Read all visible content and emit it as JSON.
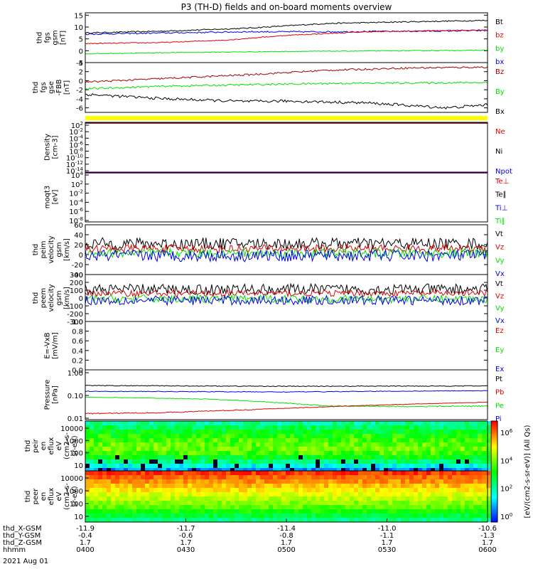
{
  "title": "P3 (TH-D) fields and on-board moments overview",
  "date_label": "2021 Aug 01",
  "colors": {
    "black": "#000000",
    "red": "#e00000",
    "green": "#00e000",
    "blue": "#0000e0",
    "darkred": "#a00000",
    "yellow": "#ffff00"
  },
  "chart_data": [
    {
      "type": "line",
      "id": "fgs",
      "ylabel": [
        "thd",
        "fgs",
        "gsm",
        "[nT]"
      ],
      "yticks": [
        -5,
        0,
        5,
        10,
        15
      ],
      "ylim": [
        -5,
        16
      ],
      "legend": [
        {
          "name": "Bt",
          "color": "black"
        },
        {
          "name": "bz",
          "color": "red"
        },
        {
          "name": "by",
          "color": "green"
        },
        {
          "name": "bx",
          "color": "blue"
        }
      ],
      "series": [
        {
          "name": "Bt",
          "color": "black",
          "x": [
            0,
            0.2,
            0.4,
            0.5,
            0.6,
            0.8,
            1
          ],
          "y": [
            7.5,
            8.3,
            9.5,
            10.5,
            11.5,
            12.2,
            12.8
          ],
          "noise": 0.25
        },
        {
          "name": "bx",
          "color": "blue",
          "x": [
            0,
            0.2,
            0.4,
            0.6,
            0.8,
            1
          ],
          "y": [
            7,
            7.5,
            8,
            8,
            8.2,
            8.5
          ],
          "noise": 0.3
        },
        {
          "name": "bz",
          "color": "red",
          "x": [
            0,
            0.2,
            0.35,
            0.5,
            0.7,
            1
          ],
          "y": [
            3,
            3.5,
            4.5,
            6.5,
            8,
            8.8
          ],
          "noise": 0.2
        },
        {
          "name": "by",
          "color": "green",
          "x": [
            0,
            0.2,
            0.5,
            1
          ],
          "y": [
            -1.3,
            -0.8,
            -0.3,
            0.2
          ],
          "noise": 0.15
        }
      ]
    },
    {
      "type": "line",
      "id": "fgs_gse",
      "ylabel": [
        "thd",
        "fgs",
        "gse",
        "-FBB",
        "[nT]"
      ],
      "yticks": [
        -6,
        -4,
        -2,
        0,
        2,
        4
      ],
      "ylim": [
        -7,
        4
      ],
      "legend": [
        {
          "name": "Bz",
          "color": "darkred"
        },
        {
          "name": "By",
          "color": "green"
        },
        {
          "name": "Bx",
          "color": "black"
        }
      ],
      "series": [
        {
          "name": "Bz",
          "color": "darkred",
          "x": [
            0,
            0.2,
            0.4,
            0.6,
            0.8,
            1
          ],
          "y": [
            -0.3,
            0.5,
            1.3,
            2.3,
            2.8,
            3
          ],
          "noise": 0.2
        },
        {
          "name": "By",
          "color": "green",
          "x": [
            0,
            0.2,
            0.4,
            0.6,
            1
          ],
          "y": [
            -1.8,
            -1.2,
            -0.9,
            -0.6,
            -0.4
          ],
          "noise": 0.2
        },
        {
          "name": "Bx",
          "color": "black",
          "x": [
            0,
            0.2,
            0.4,
            0.5,
            0.7,
            0.9,
            1
          ],
          "y": [
            -3,
            -4,
            -4.6,
            -4.5,
            -4.9,
            -6,
            -5.3
          ],
          "noise": 0.3
        }
      ]
    },
    {
      "type": "line",
      "id": "density",
      "ylabel": [
        "Density",
        "[cm-3]"
      ],
      "ytick_labels": [
        "10^2",
        "10^-2",
        "10^-4",
        "10^-6",
        "10^-8",
        "10^-10",
        "10^-12",
        "10^-14"
      ],
      "legend": [
        {
          "name": "Ne",
          "color": "red"
        },
        {
          "name": "Ni",
          "color": "black"
        },
        {
          "name": "Npot",
          "color": "blue"
        }
      ],
      "series": [
        {
          "name": "Ne",
          "color": "red",
          "x": [
            0,
            1
          ],
          "y": [
            0.98,
            0.98
          ]
        },
        {
          "name": "Ni",
          "color": "black",
          "x": [
            0,
            1
          ],
          "y": [
            0.99,
            0.99
          ]
        }
      ]
    },
    {
      "type": "line",
      "id": "temperature",
      "ylabel": [
        "moqt3",
        "[eV]"
      ],
      "ytick_labels": [
        "10^4",
        "10^2",
        "10^-2",
        "10^-4",
        "10^-6",
        "10^-8"
      ],
      "legend": [
        {
          "name": "Te⊥",
          "color": "red"
        },
        {
          "name": "Te∥",
          "color": "black"
        },
        {
          "name": "Ti⊥",
          "color": "blue"
        },
        {
          "name": "Ti∥",
          "color": "green"
        }
      ],
      "series": [
        {
          "name": "Te",
          "color": "red",
          "x": [
            0,
            1
          ],
          "y": [
            0.98,
            0.98
          ]
        },
        {
          "name": "Ti",
          "color": "blue",
          "x": [
            0,
            1
          ],
          "y": [
            0.99,
            0.99
          ]
        }
      ]
    },
    {
      "type": "line",
      "id": "peim_v",
      "ylabel": [
        "thd",
        "peim",
        "velocity",
        "gsm",
        "[km/s]"
      ],
      "yticks": [
        -40,
        -20,
        0,
        20,
        40,
        60
      ],
      "ylim": [
        -40,
        60
      ],
      "legend": [
        {
          "name": "Vt",
          "color": "black"
        },
        {
          "name": "Vz",
          "color": "red"
        },
        {
          "name": "Vy",
          "color": "green"
        },
        {
          "name": "Vx",
          "color": "blue"
        }
      ],
      "series": [
        {
          "name": "Vt",
          "color": "black",
          "base": 22,
          "noise": 12
        },
        {
          "name": "Vz",
          "color": "red",
          "base": 12,
          "noise": 8
        },
        {
          "name": "Vy",
          "color": "green",
          "base": 3,
          "noise": 9
        },
        {
          "name": "Vx",
          "color": "blue",
          "base": -2,
          "noise": 12
        }
      ]
    },
    {
      "type": "line",
      "id": "peem_v",
      "ylabel": [
        "thd",
        "peem",
        "velocity",
        "gsm",
        "[km/s]"
      ],
      "yticks": [
        -300,
        -200,
        -100,
        0,
        100,
        200,
        300
      ],
      "ylim": [
        -300,
        300
      ],
      "legend": [
        {
          "name": "Vt",
          "color": "black"
        },
        {
          "name": "Vz",
          "color": "red"
        },
        {
          "name": "Vy",
          "color": "green"
        },
        {
          "name": "Vx",
          "color": "blue"
        }
      ],
      "series": [
        {
          "name": "Vt",
          "color": "black",
          "base": 110,
          "noise": 70
        },
        {
          "name": "Vz",
          "color": "red",
          "base": 60,
          "noise": 40
        },
        {
          "name": "Vy",
          "color": "green",
          "base": -10,
          "noise": 50
        },
        {
          "name": "Vx",
          "color": "blue",
          "base": -30,
          "noise": 60
        }
      ]
    },
    {
      "type": "line",
      "id": "efield",
      "ylabel": [
        "E=-VxB",
        "[mV/m]"
      ],
      "yticks": [
        0,
        0.2,
        0.4,
        0.6,
        0.8,
        1
      ],
      "ytick_labels": [
        "0.0",
        "0.2",
        "0.4",
        "0.6",
        "0.8",
        "1.0"
      ],
      "ylim": [
        0,
        1
      ],
      "legend": [
        {
          "name": "Ez",
          "color": "red"
        },
        {
          "name": "Ey",
          "color": "green"
        },
        {
          "name": "Ex",
          "color": "blue"
        }
      ],
      "series": []
    },
    {
      "type": "line",
      "id": "pressure",
      "log": true,
      "ylabel": [
        "Pressure",
        "[nPa]"
      ],
      "ytick_labels": [
        "1.00",
        "0.10",
        "0.01"
      ],
      "ylim": [
        0.01,
        1.3
      ],
      "legend": [
        {
          "name": "Pt",
          "color": "black"
        },
        {
          "name": "Pb",
          "color": "red"
        },
        {
          "name": "Pe",
          "color": "green"
        },
        {
          "name": "Pi",
          "color": "blue"
        }
      ],
      "series": [
        {
          "name": "Pt",
          "color": "black",
          "x": [
            0,
            0.5,
            1
          ],
          "y": [
            0.28,
            0.26,
            0.27
          ],
          "noise": 0.01
        },
        {
          "name": "Pi",
          "color": "blue",
          "x": [
            0,
            0.5,
            1
          ],
          "y": [
            0.16,
            0.15,
            0.17
          ],
          "noise": 0.005
        },
        {
          "name": "Pe",
          "color": "green",
          "x": [
            0,
            0.3,
            0.5,
            0.6,
            0.8,
            1
          ],
          "y": [
            0.09,
            0.075,
            0.05,
            0.038,
            0.036,
            0.038
          ],
          "noise": 0.002
        },
        {
          "name": "Pb",
          "color": "red",
          "x": [
            0,
            0.2,
            0.4,
            0.6,
            0.8,
            1
          ],
          "y": [
            0.018,
            0.02,
            0.026,
            0.035,
            0.045,
            0.055
          ],
          "noise": 0.001
        }
      ]
    },
    {
      "type": "heatmap",
      "id": "peir",
      "ylabel": [
        "thd",
        "peir",
        "en",
        "eflux",
        "eV",
        "(cm2-s-",
        "sr-eV)"
      ],
      "ytick_labels": [
        "10000",
        "1000",
        "100",
        "10"
      ]
    },
    {
      "type": "heatmap",
      "id": "peer",
      "ylabel": [
        "thd",
        "peer",
        "en",
        "eflux",
        "eV",
        "(cm2-s-",
        "sr-eV)"
      ],
      "ytick_labels": [
        "10000",
        "1000",
        "100",
        "10"
      ]
    }
  ],
  "colorbar": {
    "label": "[eV/(cm2-s-sr-eV)] (All Qs)",
    "tick_labels": [
      "10^6",
      "10^4",
      "10^2",
      "10^0"
    ]
  },
  "xaxis": {
    "rows": [
      {
        "label": "thd_X-GSM",
        "values": [
          "-11.9",
          "-11.7",
          "-11.4",
          "-11.0",
          "-10.6"
        ]
      },
      {
        "label": "thd_Y-GSM",
        "values": [
          "-0.4",
          "-0.6",
          "-0.8",
          "-1.1",
          "-1.3"
        ]
      },
      {
        "label": "thd_Z-GSM",
        "values": [
          "1.7",
          "1.7",
          "1.7",
          "1.7",
          "1.7"
        ]
      },
      {
        "label": "hhmm",
        "values": [
          "0400",
          "0430",
          "0500",
          "0530",
          "0600"
        ]
      }
    ]
  }
}
